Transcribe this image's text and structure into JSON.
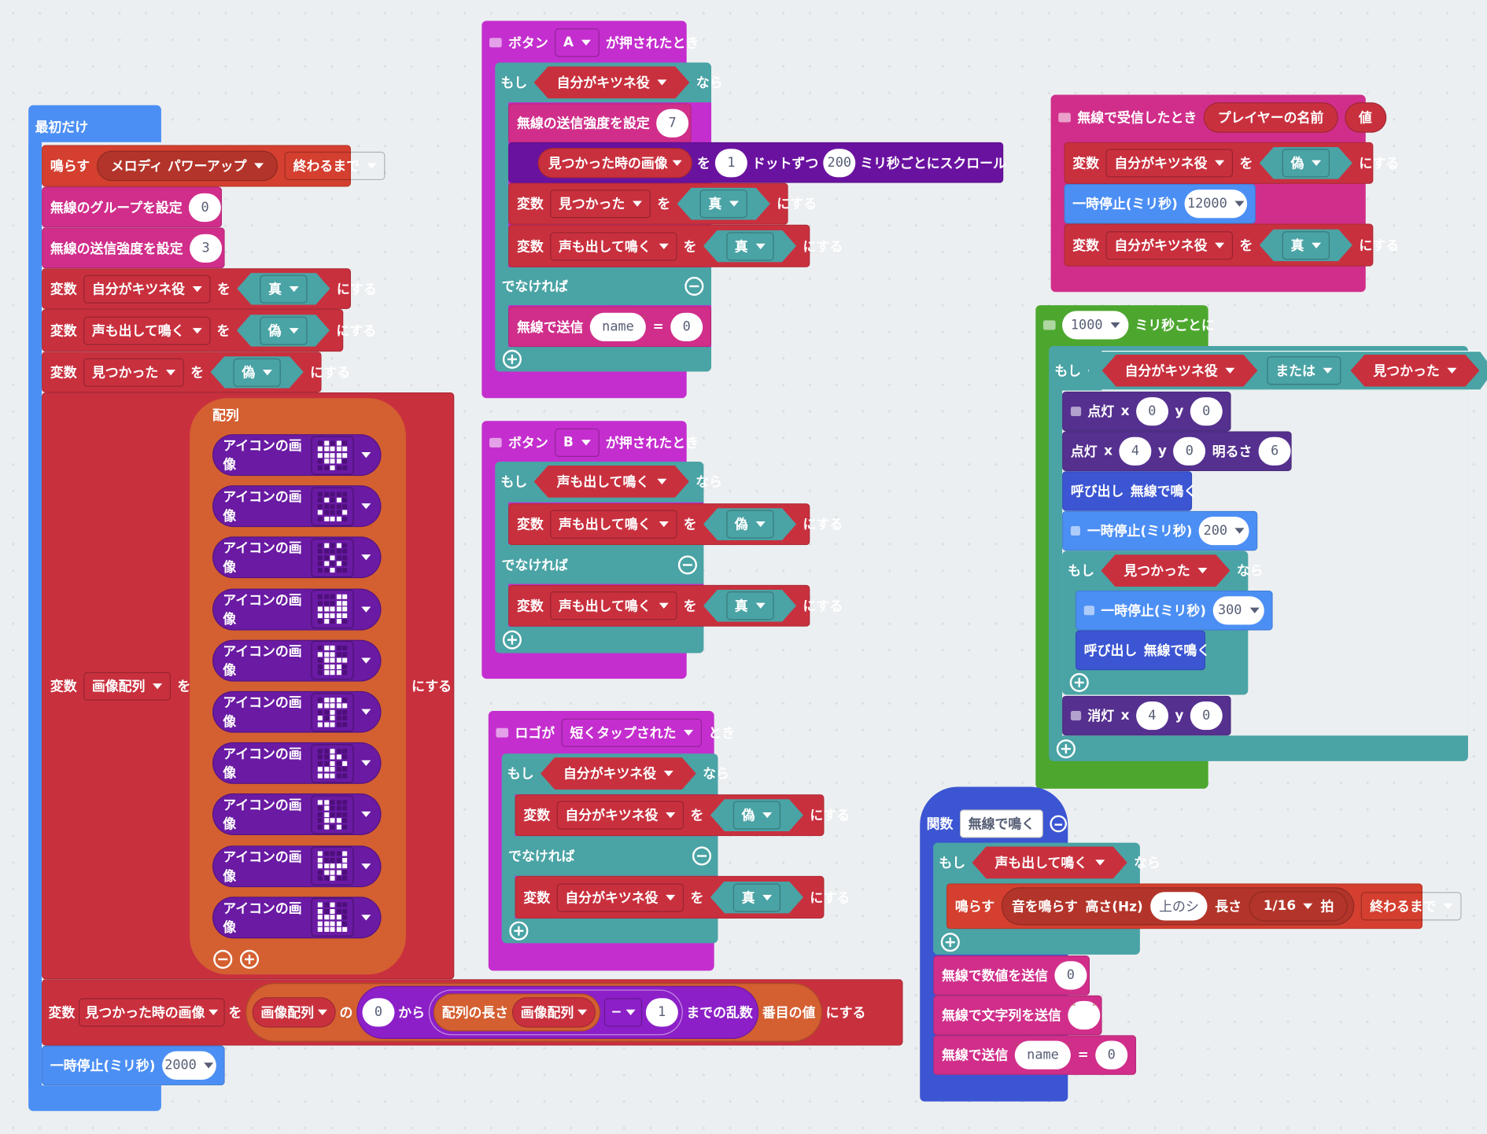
{
  "words": {
    "variable": "変数",
    "wo": "を",
    "nisuru": "にする",
    "moshi": "もし",
    "nara": "なら",
    "denakereba": "でなければ",
    "true": "真",
    "false": "偽"
  },
  "vars": {
    "fox": "自分がキツネ役",
    "voice": "声も出して鳴く",
    "found": "見つかった",
    "found_image": "見つかった時の画像",
    "image_array": "画像配列"
  },
  "on_start": {
    "title": "最初だけ",
    "play": "鳴らす",
    "melody": "メロディ パワーアップ",
    "until": "終わるまで",
    "radio_group_label": "無線のグループを設定",
    "radio_group_value": "0",
    "radio_power_label": "無線の送信強度を設定",
    "radio_power_value": "3",
    "array_label": "配列",
    "icon_label": "アイコンの画像",
    "icons": [
      "0101011111111110111000100",
      "0000001010000001000101110",
      "0101000000001000101000100",
      "0001100011111111111101010",
      "0110011100011110111001110",
      "0111011111001001010011100",
      "0010000110001011110011100",
      "1100001000010000111001010",
      "1000110001111110111000100",
      "1010010100111101111011111"
    ],
    "of": "の",
    "rand_min": "0",
    "from": "から",
    "array_length": "配列の長さ",
    "minus_op": "−",
    "rand_sub": "1",
    "random_to": "までの乱数",
    "nth_value": "番目の値",
    "pause_label": "一時停止(ミリ秒)",
    "pause_value": "2000"
  },
  "button_a": {
    "button": "ボタン",
    "name": "A",
    "pressed": "が押されたとき",
    "radio_power_label": "無線の送信強度を設定",
    "radio_power_value": "7",
    "scroll_step": "1",
    "dots": "ドットずつ",
    "interval": "200",
    "scroll_suffix": "ミリ秒ごとにスクロール",
    "send_label": "無線で送信",
    "send_name": "name",
    "equals": "=",
    "send_value": "0"
  },
  "button_b": {
    "button": "ボタン",
    "name": "B",
    "pressed": "が押されたとき"
  },
  "logo": {
    "prefix": "ロゴが",
    "event": "短くタップされた",
    "suffix": "とき"
  },
  "radio_received": {
    "label": "無線で受信したとき",
    "param_name": "プレイヤーの名前",
    "param_value": "値",
    "pause_label": "一時停止(ミリ秒)",
    "pause_value": "12000"
  },
  "every": {
    "value": "1000",
    "label": "ミリ秒ごとに",
    "or": "または",
    "plot": "点灯",
    "x": "x",
    "y": "y",
    "brightness": "明るさ",
    "plot1_x": "0",
    "plot1_y": "0",
    "plot2_x": "4",
    "plot2_y": "0",
    "plot2_brightness": "6",
    "call": "呼び出し",
    "fn_name": "無線で鳴く",
    "pause_label": "一時停止(ミリ秒)",
    "pause1": "200",
    "pause2": "300",
    "unplot": "消灯",
    "unplot_x": "4",
    "unplot_y": "0"
  },
  "function": {
    "label": "関数",
    "name": "無線で鳴く",
    "play": "鳴らす",
    "tone": "音を鳴らす",
    "freq_label": "高さ(Hz)",
    "note": "上のシ",
    "length": "長さ",
    "beat": "1/16",
    "beat_unit": "拍",
    "until": "終わるまで",
    "send_number": "無線で数値を送信",
    "number_value": "0",
    "send_string": "無線で文字列を送信",
    "string_value": "",
    "send_label": "無線で送信",
    "send_name": "name",
    "equals": "=",
    "send_value": "0"
  },
  "colors": {
    "basic": "#4C8FF4",
    "music": "#D43F2F",
    "radio": "#D02E8A",
    "variables": "#C9303E",
    "logic": "#4AA3A5",
    "input": "#C42ECE",
    "led": "#55308F",
    "arrays": "#D45F31",
    "loops": "#4DA72F",
    "functions": "#3B55D3",
    "math": "#8C1FC7"
  }
}
